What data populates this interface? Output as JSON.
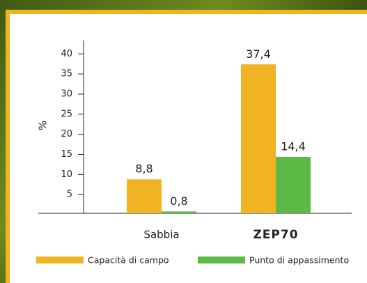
{
  "chart_data": {
    "type": "bar",
    "y_label": "%",
    "categories": [
      "Sabbia",
      "ZEP70"
    ],
    "series": [
      {
        "name": "Capacità di campo",
        "color": "#f0b323",
        "values": [
          8.8,
          37.4
        ],
        "value_labels": [
          "8,8",
          "37,4"
        ]
      },
      {
        "name": "Punto di appassimento",
        "color": "#5cb946",
        "values": [
          0.8,
          14.4
        ],
        "value_labels": [
          "0,8",
          "14,4"
        ]
      }
    ],
    "ylim": [
      0,
      43
    ],
    "yticks": [
      5,
      10,
      15,
      20,
      25,
      30,
      35,
      40
    ],
    "grid": false,
    "legend": "bottom"
  }
}
